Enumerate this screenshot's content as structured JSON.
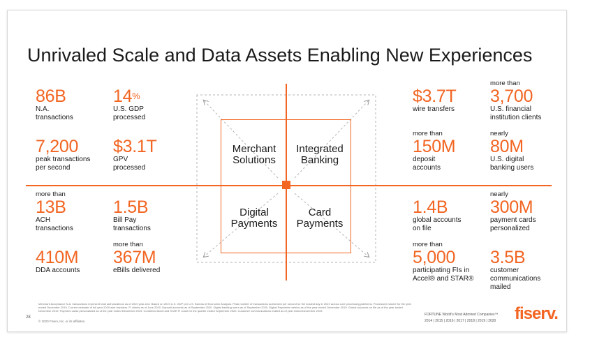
{
  "title": "Unrivaled Scale and Data Assets Enabling New Experiences",
  "quadrants": [
    "Merchant\nSolutions",
    "Integrated\nBanking",
    "Digital\nPayments",
    "Card\nPayments"
  ],
  "left_stats": [
    {
      "pre": "",
      "value": "86B",
      "desc": "N.A.\ntransactions"
    },
    {
      "pre": "",
      "value": "14",
      "sup": "%",
      "desc": "U.S. GDP\nprocessed"
    },
    {
      "pre": "",
      "value": "7,200",
      "desc": "peak transactions\nper second"
    },
    {
      "pre": "",
      "value": "$3.1T",
      "desc": "GPV\nprocessed"
    },
    {
      "pre": "more than",
      "value": "13B",
      "desc": "ACH\ntransactions"
    },
    {
      "pre": "",
      "value": "1.5B",
      "desc": "Bill Pay\ntransactions"
    },
    {
      "pre": "",
      "value": "410M",
      "desc": "DDA accounts"
    },
    {
      "pre": "more than",
      "value": "367M",
      "desc": "eBills delivered"
    }
  ],
  "right_stats": [
    {
      "pre": "",
      "value": "$3.7T",
      "desc": "wire transfers"
    },
    {
      "pre": "more than",
      "value": "3,700",
      "desc": "U.S. financial\ninstitution clients"
    },
    {
      "pre": "more than",
      "value": "150M",
      "desc": "deposit\naccounts"
    },
    {
      "pre": "nearly",
      "value": "80M",
      "desc": "U.S. digital\nbanking users"
    },
    {
      "pre": "",
      "value": "1.4B",
      "desc": "global accounts\non file"
    },
    {
      "pre": "nearly",
      "value": "300M",
      "desc": "payment cards\npersonalized"
    },
    {
      "pre": "more than",
      "value": "5,000",
      "desc": "participating FIs in\nAccel® and STAR®"
    },
    {
      "pre": "",
      "value": "3.5B",
      "desc": "customer\ncommunications\nmailed"
    }
  ],
  "footnote": "Merchant Acceptance N.A. transactions represent total authorizations as of 2019 year-end. Based on 2019 U.S. GDP per U.S. Bureau of Economic Analysis. Peak number of transactions authorized per second for the busiest day in 2019 across core processing platforms. Processed volume for the year ended December 2019. Current estimate of full year 2020 wire transfers. FI clients as of June 2020. Deposit accounts as of September 2020. Digital banking users as of September 2020. Digital Payments metrics as of the year ended December 2019. Global accounts on file as of the year ended December 2019. Payment cards personalized as of the year ended December 2019. Combined Accel and STAR FI count for the quarter ended September 2020. Customer communications mailed as of year ended December 2019.",
  "page_number": "28",
  "copyright": "© 2020 Fiserv, Inc. or its affiliates.",
  "fortune": "FORTUNE World's Most Admired Companies™",
  "years": "2014 | 2015 | 2016 | 2017 | 2018 | 2019 | 2020",
  "logo": "fiserv."
}
